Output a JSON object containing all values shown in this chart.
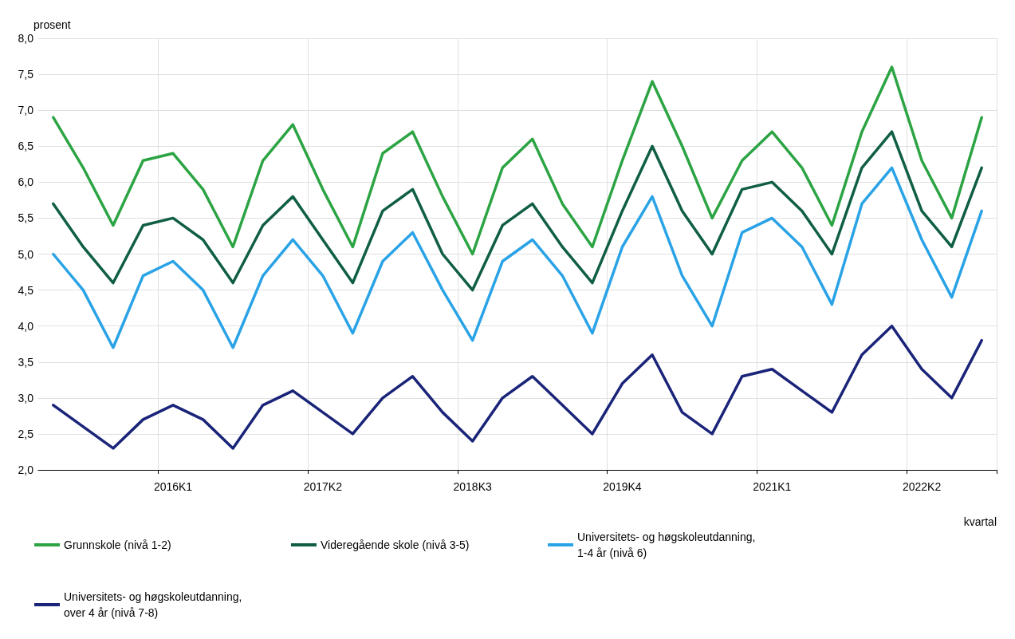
{
  "chart_data": {
    "type": "line",
    "ylabel": "prosent",
    "xlabel": "kvartal",
    "categories": [
      null,
      null,
      null,
      null,
      "2016K1",
      null,
      null,
      null,
      null,
      "2017K2",
      null,
      null,
      null,
      null,
      "2018K3",
      null,
      null,
      null,
      null,
      "2019K4",
      null,
      null,
      null,
      null,
      "2021K1",
      null,
      null,
      null,
      null,
      "2022K2",
      null,
      null
    ],
    "series": [
      {
        "name": "Grunnskole (nivå 1-2)",
        "color": "#2ca444",
        "values": [
          6.9,
          6.2,
          5.4,
          6.3,
          6.4,
          5.9,
          5.1,
          6.3,
          6.8,
          5.9,
          5.1,
          6.4,
          6.7,
          5.8,
          5.0,
          6.2,
          6.6,
          5.7,
          5.1,
          6.3,
          7.4,
          6.5,
          5.5,
          6.3,
          6.7,
          6.2,
          5.4,
          6.7,
          7.6,
          6.3,
          5.5,
          6.9
        ]
      },
      {
        "name": "Videregående skole (nivå 3-5)",
        "color": "#0f5e45",
        "values": [
          5.7,
          5.1,
          4.6,
          5.4,
          5.5,
          5.2,
          4.6,
          5.4,
          5.8,
          5.2,
          4.6,
          5.6,
          5.9,
          5.0,
          4.5,
          5.4,
          5.7,
          5.1,
          4.6,
          5.6,
          6.5,
          5.6,
          5.0,
          5.9,
          6.0,
          5.6,
          5.0,
          6.2,
          6.7,
          5.6,
          5.1,
          6.2
        ]
      },
      {
        "name": "Universitets- og høgskoleutdanning, 1-4 år (nivå 6)",
        "color": "#2aa3e6",
        "values": [
          5.0,
          4.5,
          3.7,
          4.7,
          4.9,
          4.5,
          3.7,
          4.7,
          5.2,
          4.7,
          3.9,
          4.9,
          5.3,
          4.5,
          3.8,
          4.9,
          5.2,
          4.7,
          3.9,
          5.1,
          5.8,
          4.7,
          4.0,
          5.3,
          5.5,
          5.1,
          4.3,
          5.7,
          6.2,
          5.2,
          4.4,
          5.6
        ]
      },
      {
        "name": "Universitets- og høgskoleutdanning, over 4 år (nivå 7-8)",
        "color": "#1a2479",
        "values": [
          2.9,
          2.6,
          2.3,
          2.7,
          2.9,
          2.7,
          2.3,
          2.9,
          3.1,
          2.8,
          2.5,
          3.0,
          3.3,
          2.8,
          2.4,
          3.0,
          3.3,
          2.9,
          2.5,
          3.2,
          3.6,
          2.8,
          2.5,
          3.3,
          3.4,
          3.1,
          2.8,
          3.6,
          4.0,
          3.4,
          3.0,
          3.8
        ]
      }
    ],
    "ylim": [
      2,
      8
    ],
    "yticks": [
      {
        "value": 2,
        "label": "2,0"
      },
      {
        "value": 2.5,
        "label": "2,5"
      },
      {
        "value": 3,
        "label": "3,0"
      },
      {
        "value": 3.5,
        "label": "3,5"
      },
      {
        "value": 4,
        "label": "4,0"
      },
      {
        "value": 4.5,
        "label": "4,5"
      },
      {
        "value": 5,
        "label": "5,0"
      },
      {
        "value": 5.5,
        "label": "5,5"
      },
      {
        "value": 6,
        "label": "6,0"
      },
      {
        "value": 6.5,
        "label": "6,5"
      },
      {
        "value": 7,
        "label": "7,0"
      },
      {
        "value": 7.5,
        "label": "7,5"
      },
      {
        "value": 8,
        "label": "8,0"
      }
    ],
    "grid": true,
    "legend": "bottom",
    "marker": "none",
    "line_style": "solid"
  }
}
